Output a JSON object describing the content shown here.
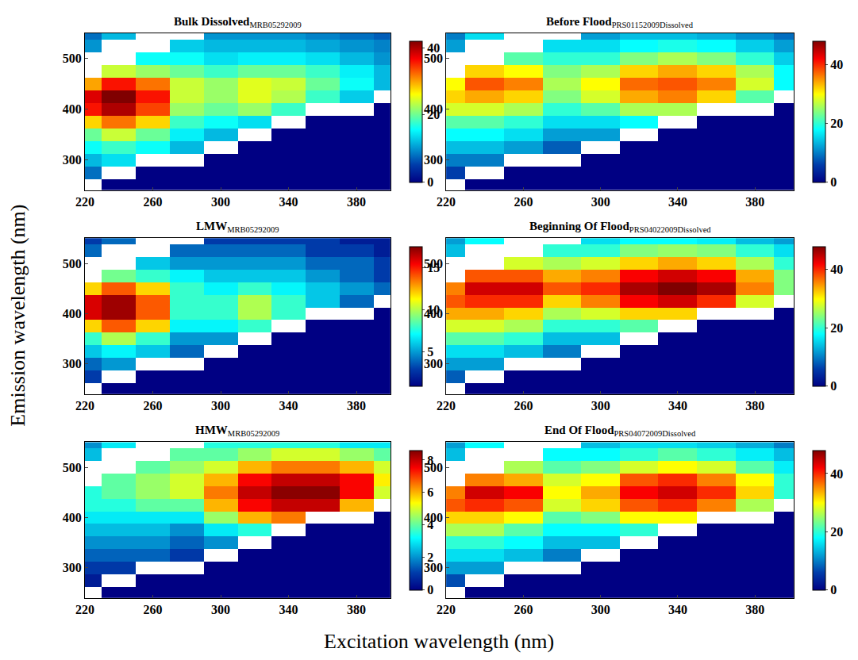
{
  "chart_data": {
    "type": "heatmap",
    "xlabel": "Excitation wavelength (nm)",
    "ylabel": "Emission wavelength (nm)",
    "color": "Jet",
    "x": [
      220,
      240,
      260,
      280,
      300,
      320,
      340,
      360,
      380,
      400
    ],
    "y": [
      250,
      275,
      300,
      325,
      350,
      375,
      400,
      425,
      450,
      475,
      500,
      525,
      550
    ],
    "xlim": [
      220,
      400
    ],
    "ylim": [
      240,
      550
    ],
    "xticks": [
      220,
      260,
      300,
      340,
      380
    ],
    "yticks": [
      300,
      400,
      500
    ],
    "grid": false,
    "panels": [
      {
        "title": "Bulk Dissolved",
        "title_sub": "MRB05292009",
        "zlim": [
          0,
          42
        ],
        "zticks": [
          0,
          20,
          40
        ],
        "z": [
          [
            null,
            0,
            0,
            0,
            0,
            0,
            0,
            0,
            0,
            0
          ],
          [
            8,
            null,
            0,
            0,
            0,
            0,
            0,
            0,
            0,
            0
          ],
          [
            12,
            14,
            null,
            null,
            0,
            0,
            0,
            0,
            0,
            0
          ],
          [
            16,
            18,
            16,
            12,
            null,
            0,
            0,
            0,
            0,
            0
          ],
          [
            20,
            24,
            20,
            15,
            12,
            null,
            0,
            0,
            0,
            0
          ],
          [
            28,
            32,
            28,
            18,
            16,
            14,
            null,
            0,
            0,
            0
          ],
          [
            36,
            40,
            34,
            22,
            20,
            22,
            18,
            null,
            null,
            0
          ],
          [
            38,
            42,
            36,
            24,
            22,
            25,
            23,
            18,
            13,
            null
          ],
          [
            30,
            36,
            32,
            24,
            22,
            25,
            24,
            20,
            16,
            12
          ],
          [
            null,
            24,
            22,
            20,
            18,
            20,
            20,
            18,
            15,
            12
          ],
          [
            null,
            null,
            16,
            16,
            14,
            15,
            15,
            14,
            12,
            10
          ],
          [
            10,
            null,
            null,
            13,
            12,
            12,
            12,
            11,
            10,
            9
          ],
          [
            8,
            12,
            null,
            null,
            10,
            10,
            10,
            9,
            8,
            7
          ]
        ]
      },
      {
        "title": "Before Flood",
        "title_sub": "PRS01152009Dissolved",
        "zlim": [
          0,
          48
        ],
        "zticks": [
          0,
          20,
          40
        ],
        "z": [
          [
            null,
            0,
            0,
            0,
            0,
            0,
            0,
            0,
            0,
            0
          ],
          [
            6,
            null,
            0,
            0,
            0,
            0,
            0,
            0,
            0,
            0
          ],
          [
            10,
            10,
            null,
            null,
            0,
            0,
            0,
            0,
            0,
            0
          ],
          [
            14,
            14,
            12,
            8,
            null,
            0,
            0,
            0,
            0,
            0
          ],
          [
            18,
            18,
            16,
            12,
            12,
            null,
            0,
            0,
            0,
            0
          ],
          [
            22,
            22,
            20,
            16,
            16,
            18,
            null,
            0,
            0,
            0
          ],
          [
            28,
            28,
            26,
            20,
            22,
            26,
            26,
            null,
            null,
            0
          ],
          [
            32,
            34,
            32,
            24,
            28,
            34,
            36,
            32,
            22,
            null
          ],
          [
            30,
            38,
            36,
            26,
            30,
            37,
            38,
            36,
            28,
            18
          ],
          [
            null,
            32,
            30,
            24,
            26,
            32,
            34,
            32,
            26,
            18
          ],
          [
            null,
            null,
            22,
            20,
            20,
            24,
            26,
            24,
            20,
            15
          ],
          [
            12,
            null,
            null,
            16,
            16,
            18,
            19,
            18,
            15,
            12
          ],
          [
            10,
            16,
            null,
            null,
            12,
            14,
            14,
            13,
            11,
            9
          ]
        ]
      },
      {
        "title": "LMW",
        "title_sub": "MRB05292009",
        "zlim": [
          1,
          17.5
        ],
        "zticks": [
          5,
          10,
          15
        ],
        "z": [
          [
            null,
            1,
            1,
            1,
            1,
            1,
            1,
            1,
            1,
            1
          ],
          [
            3,
            null,
            1,
            1,
            1,
            1,
            1,
            1,
            1,
            1
          ],
          [
            4,
            5,
            null,
            null,
            1,
            1,
            1,
            1,
            1,
            1
          ],
          [
            6,
            7,
            6,
            4,
            null,
            1,
            1,
            1,
            1,
            1
          ],
          [
            8,
            10,
            8,
            5,
            5,
            null,
            1,
            1,
            1,
            1
          ],
          [
            12,
            14,
            12,
            7,
            7,
            8,
            null,
            1,
            1,
            1
          ],
          [
            16,
            17,
            14,
            8,
            8,
            10,
            8,
            null,
            null,
            1
          ],
          [
            16,
            17,
            14,
            8,
            8,
            10,
            8,
            6,
            4,
            null
          ],
          [
            12,
            14,
            12,
            8,
            7,
            8,
            7,
            6,
            5,
            4
          ],
          [
            null,
            9,
            8,
            7,
            6,
            6,
            6,
            5,
            4,
            3
          ],
          [
            null,
            null,
            6,
            5,
            5,
            5,
            5,
            4,
            4,
            3
          ],
          [
            4,
            null,
            null,
            4,
            4,
            4,
            4,
            3,
            3,
            2
          ],
          [
            3,
            4,
            null,
            null,
            3,
            3,
            3,
            3,
            2,
            2
          ]
        ]
      },
      {
        "title": "Beginning Of Flood",
        "title_sub": "PRS04022009Dissolved",
        "zlim": [
          0,
          48
        ],
        "zticks": [
          0,
          20,
          40
        ],
        "z": [
          [
            null,
            0,
            0,
            0,
            0,
            0,
            0,
            0,
            0,
            0
          ],
          [
            8,
            null,
            0,
            0,
            0,
            0,
            0,
            0,
            0,
            0
          ],
          [
            12,
            12,
            null,
            null,
            0,
            0,
            0,
            0,
            0,
            0
          ],
          [
            16,
            16,
            14,
            10,
            null,
            0,
            0,
            0,
            0,
            0
          ],
          [
            22,
            22,
            20,
            14,
            14,
            null,
            0,
            0,
            0,
            0
          ],
          [
            28,
            28,
            26,
            20,
            20,
            22,
            null,
            0,
            0,
            0
          ],
          [
            34,
            34,
            32,
            26,
            28,
            32,
            32,
            null,
            null,
            0
          ],
          [
            38,
            40,
            40,
            32,
            36,
            42,
            44,
            40,
            28,
            null
          ],
          [
            36,
            44,
            44,
            38,
            40,
            46,
            48,
            46,
            36,
            24
          ],
          [
            null,
            38,
            38,
            34,
            36,
            42,
            44,
            42,
            34,
            24
          ],
          [
            null,
            null,
            28,
            26,
            28,
            32,
            34,
            32,
            26,
            20
          ],
          [
            14,
            null,
            null,
            20,
            20,
            24,
            25,
            24,
            20,
            16
          ],
          [
            12,
            18,
            null,
            null,
            16,
            18,
            18,
            17,
            14,
            12
          ]
        ]
      },
      {
        "title": "HMW",
        "title_sub": "MRB05292009",
        "zlim": [
          0,
          8.6
        ],
        "zticks": [
          0,
          2,
          4,
          6,
          8
        ],
        "z": [
          [
            null,
            0,
            0,
            0,
            0,
            0,
            0,
            0,
            0,
            0
          ],
          [
            0.5,
            null,
            0,
            0,
            0,
            0,
            0,
            0,
            0,
            0
          ],
          [
            1,
            1,
            null,
            null,
            0,
            0,
            0,
            0,
            0,
            0
          ],
          [
            1.5,
            1.5,
            1.5,
            1,
            null,
            0,
            0,
            0,
            0,
            0
          ],
          [
            2,
            2,
            2,
            1.5,
            2,
            null,
            0,
            0,
            0,
            0
          ],
          [
            2.5,
            2.5,
            2.5,
            2,
            3,
            3.5,
            null,
            0,
            0,
            0
          ],
          [
            3,
            3,
            3,
            3,
            4.5,
            6,
            6.5,
            null,
            null,
            0
          ],
          [
            3.5,
            3.5,
            4,
            4,
            6,
            7.5,
            8,
            8,
            6,
            null
          ],
          [
            3.5,
            4,
            4.5,
            5,
            6.5,
            8,
            8.5,
            8.5,
            7.5,
            5
          ],
          [
            null,
            4,
            4.5,
            5,
            6,
            7.5,
            8,
            8,
            7.5,
            5.5
          ],
          [
            null,
            null,
            4,
            4.5,
            5,
            6,
            6.5,
            6.5,
            6,
            5
          ],
          [
            2.5,
            null,
            null,
            4,
            4,
            4.5,
            5,
            5,
            4.5,
            4
          ],
          [
            2,
            3,
            null,
            null,
            3.5,
            3.5,
            3.5,
            3.5,
            3,
            3
          ]
        ]
      },
      {
        "title": "End Of Flood",
        "title_sub": "PRS04072009Dissolved",
        "zlim": [
          0,
          48
        ],
        "zticks": [
          0,
          20,
          40
        ],
        "z": [
          [
            null,
            0,
            0,
            0,
            0,
            0,
            0,
            0,
            0,
            0
          ],
          [
            7,
            null,
            0,
            0,
            0,
            0,
            0,
            0,
            0,
            0
          ],
          [
            12,
            12,
            null,
            null,
            0,
            0,
            0,
            0,
            0,
            0
          ],
          [
            16,
            16,
            14,
            10,
            null,
            0,
            0,
            0,
            0,
            0
          ],
          [
            20,
            20,
            18,
            14,
            14,
            null,
            0,
            0,
            0,
            0
          ],
          [
            26,
            26,
            22,
            18,
            18,
            20,
            null,
            0,
            0,
            0
          ],
          [
            32,
            32,
            30,
            22,
            24,
            30,
            30,
            null,
            null,
            0
          ],
          [
            38,
            40,
            38,
            28,
            32,
            38,
            40,
            36,
            26,
            null
          ],
          [
            36,
            44,
            42,
            30,
            34,
            42,
            44,
            40,
            32,
            20
          ],
          [
            null,
            36,
            34,
            28,
            30,
            38,
            40,
            36,
            30,
            20
          ],
          [
            null,
            null,
            26,
            22,
            24,
            28,
            30,
            28,
            22,
            17
          ],
          [
            14,
            null,
            null,
            18,
            18,
            20,
            22,
            20,
            17,
            14
          ],
          [
            12,
            18,
            null,
            null,
            14,
            16,
            16,
            15,
            13,
            10
          ]
        ]
      }
    ]
  }
}
